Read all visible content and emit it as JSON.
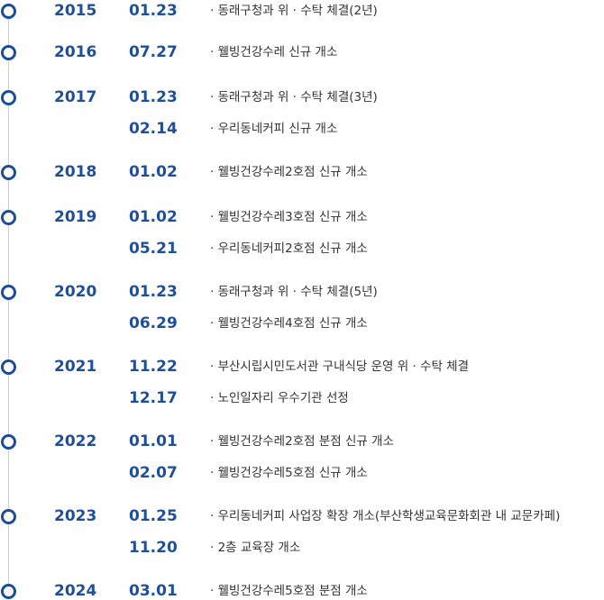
{
  "history": [
    {
      "year": "2015",
      "events": [
        {
          "date": "01.23",
          "text": "· 동래구청과 위 · 수탁 체결(2년)"
        }
      ]
    },
    {
      "year": "2016",
      "events": [
        {
          "date": "07.27",
          "text": "· 웰빙건강수레 신규 개소"
        }
      ]
    },
    {
      "year": "2017",
      "events": [
        {
          "date": "01.23",
          "text": "· 동래구청과 위 · 수탁 체결(3년)"
        },
        {
          "date": "02.14",
          "text": "·  우리동네커피 신규 개소"
        }
      ]
    },
    {
      "year": "2018",
      "events": [
        {
          "date": "01.02",
          "text": "· 웰빙건강수레2호점 신규 개소"
        }
      ]
    },
    {
      "year": "2019",
      "events": [
        {
          "date": "01.02",
          "text": "· 웰빙건강수레3호점 신규 개소"
        },
        {
          "date": "05.21",
          "text": "·  우리동네커피2호점 신규 개소"
        }
      ]
    },
    {
      "year": "2020",
      "events": [
        {
          "date": "01.23",
          "text": "· 동래구청과 위 · 수탁 체결(5년)"
        },
        {
          "date": "06.29",
          "text": "· 웰빙건강수레4호점 신규 개소"
        }
      ]
    },
    {
      "year": "2021",
      "events": [
        {
          "date": "11.22",
          "text": "· 부산시립시민도서관 구내식당 운영 위 · 수탁 체결"
        },
        {
          "date": "12.17",
          "text": "· 노인일자리 우수기관 선정"
        }
      ]
    },
    {
      "year": "2022",
      "events": [
        {
          "date": "01.01",
          "text": "· 웰빙건강수레2호점 분점 신규 개소"
        },
        {
          "date": "02.07",
          "text": "· 웰빙건강수레5호점 신규 개소"
        }
      ]
    },
    {
      "year": "2023",
      "events": [
        {
          "date": "01.25",
          "text": "· 우리동네커피 사업장 확장 개소(부산학생교육문화회관 내 교문카페)"
        },
        {
          "date": "11.20",
          "text": "· 2층 교육장 개소"
        }
      ]
    },
    {
      "year": "2024",
      "events": [
        {
          "date": "03.01",
          "text": "· 웰빙건강수레5호점 분점 개소"
        }
      ]
    }
  ],
  "colors": {
    "accent": "#1f4f98",
    "text": "#333333",
    "line": "#cfcfd4"
  }
}
